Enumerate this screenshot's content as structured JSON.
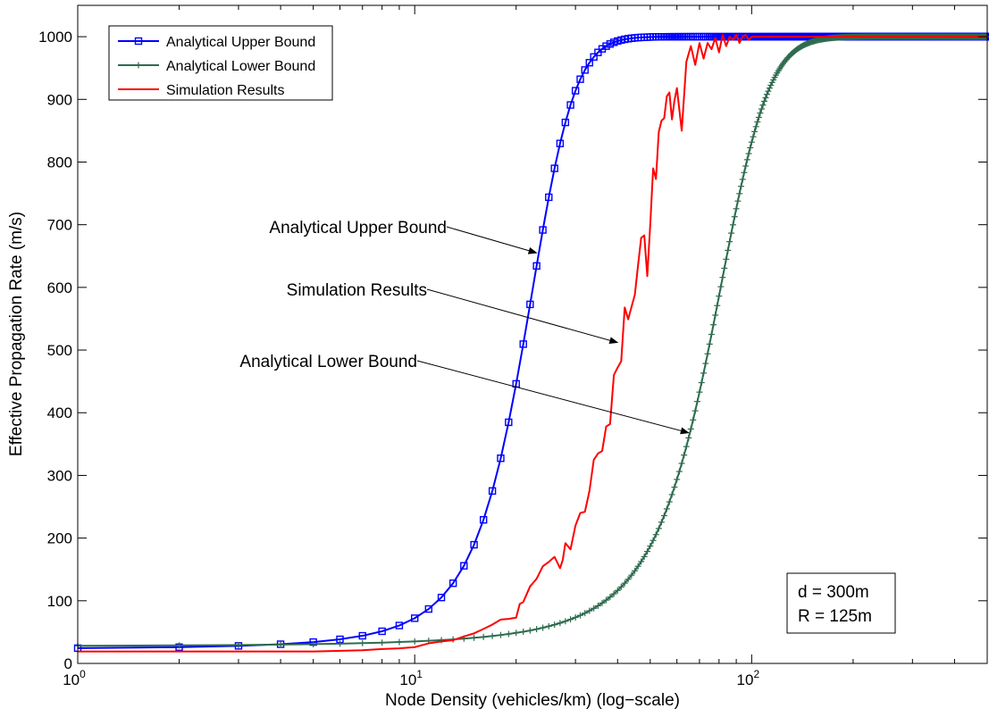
{
  "chart_data": {
    "type": "line",
    "xscale": "log",
    "xlim": [
      1,
      500
    ],
    "ylim": [
      0,
      1050
    ],
    "xlabel": "Node Density (vehicles/km) (log−scale)",
    "ylabel": "Effective Propagation Rate (m/s)",
    "x_ticks": [
      {
        "value": 1,
        "base": "10",
        "exp": "0"
      },
      {
        "value": 10,
        "base": "10",
        "exp": "1"
      },
      {
        "value": 100,
        "base": "10",
        "exp": "2"
      }
    ],
    "y_ticks": [
      0,
      100,
      200,
      300,
      400,
      500,
      600,
      700,
      800,
      900,
      1000
    ],
    "y_tick_labels": [
      "0",
      "100",
      "200",
      "300",
      "400",
      "500",
      "600",
      "700",
      "800",
      "900",
      "1000"
    ],
    "grid": false,
    "legend_position": "top-left",
    "series": [
      {
        "name": "Analytical Upper Bound",
        "color": "#0000ff",
        "marker": "square",
        "model": "logistic",
        "plateau": 1000,
        "floor": 19,
        "midpoint": 21,
        "steepness": 0.26,
        "x_step": 1,
        "x": [
          1,
          2,
          3,
          4,
          5,
          6,
          7,
          8,
          9,
          10,
          11,
          12,
          13,
          14,
          15,
          16,
          17,
          18,
          19,
          20,
          21,
          22,
          23,
          24,
          25,
          26,
          27,
          28,
          29,
          30,
          32,
          35,
          40,
          50,
          60,
          80,
          100,
          200,
          300,
          500
        ],
        "y": [
          19,
          20,
          22,
          24,
          27,
          31,
          37,
          44,
          53,
          65,
          80,
          98,
          121,
          149,
          183,
          223,
          269,
          320,
          376,
          437,
          500,
          563,
          624,
          682,
          733,
          779,
          819,
          853,
          881,
          905,
          938,
          968,
          990,
          999,
          1000,
          1000,
          1000,
          1000,
          1000,
          1000
        ]
      },
      {
        "name": "Analytical Lower Bound",
        "color": "#2e6b4f",
        "marker": "plus",
        "model": "logistic",
        "plateau": 1000,
        "floor": 19,
        "midpoint": 75,
        "steepness": 0.063,
        "x_step": 1,
        "x": [
          1,
          10,
          20,
          30,
          40,
          50,
          60,
          65,
          70,
          75,
          80,
          90,
          100,
          120,
          150,
          200,
          300,
          500
        ],
        "y": [
          19,
          26,
          43,
          75,
          133,
          229,
          362,
          438,
          517,
          596,
          671,
          795,
          880,
          963,
          995,
          1000,
          1000,
          1000
        ]
      },
      {
        "name": "Simulation Results",
        "color": "#ff0000",
        "marker": "none",
        "x": [
          1,
          3,
          5,
          7,
          8,
          9,
          10,
          11,
          12,
          13,
          14,
          15,
          16,
          17,
          18,
          19,
          20,
          20.5,
          21,
          22,
          23,
          24,
          25,
          26,
          27,
          27.5,
          28,
          29,
          30,
          31,
          32,
          33,
          34,
          35,
          36,
          37,
          38,
          39,
          40,
          41,
          42,
          43,
          44,
          45,
          46,
          47,
          48,
          49,
          50,
          51,
          52,
          53,
          54,
          55,
          56,
          57,
          58,
          59,
          60,
          62,
          64,
          66,
          68,
          70,
          72,
          74,
          76,
          78,
          80,
          82,
          84,
          86,
          88,
          90,
          92,
          94,
          96,
          98,
          100,
          110,
          150,
          200,
          300,
          500
        ],
        "y": [
          19,
          19,
          19,
          21,
          23,
          24,
          26,
          32,
          35,
          37,
          43,
          48,
          55,
          62,
          70,
          71,
          73,
          95,
          98,
          123,
          135,
          155,
          162,
          170,
          152,
          165,
          192,
          182,
          220,
          240,
          242,
          275,
          325,
          335,
          339,
          378,
          382,
          460,
          472,
          482,
          568,
          549,
          569,
          588,
          635,
          679,
          683,
          618,
          700,
          790,
          773,
          848,
          866,
          870,
          905,
          911,
          868,
          898,
          918,
          850,
          960,
          985,
          955,
          990,
          965,
          990,
          980,
          998,
          975,
          1003,
          985,
          1000,
          995,
          1003,
          990,
          1000,
          1003,
          995,
          1000,
          1000,
          1000,
          1000,
          1000,
          1000
        ]
      }
    ],
    "annotations": [
      {
        "text": "Analytical Upper Bound",
        "target_series": 0,
        "target_x": 23,
        "target_y": 655
      },
      {
        "text": "Simulation Results",
        "target_series": 2,
        "target_x": 40,
        "target_y": 512
      },
      {
        "text": "Analytical Lower Bound",
        "target_series": 1,
        "target_x": 65,
        "target_y": 368
      }
    ],
    "textbox": [
      "d = 300m",
      "R = 125m"
    ]
  }
}
